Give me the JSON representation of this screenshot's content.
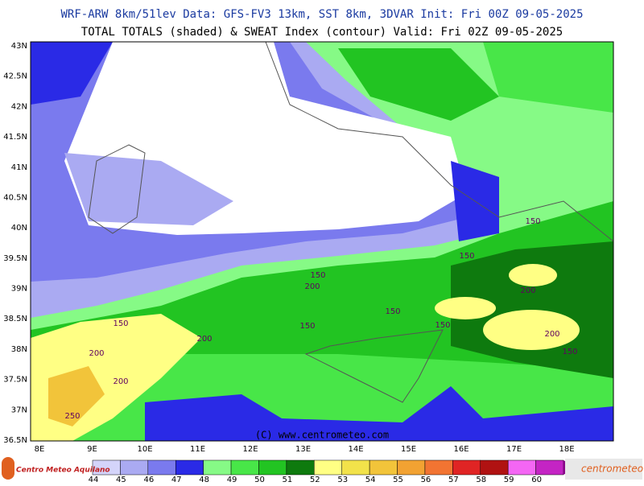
{
  "header": {
    "line1": "WRF-ARW 8km/51lev  Data: GFS-FV3 13km, SST 8km, 3DVAR  Init: Fri 00Z 09-05-2025",
    "line2": "TOTAL TOTALS (shaded) & SWEAT Index (contour)  Valid: Fri 02Z 09-05-2025"
  },
  "map": {
    "lat_labels": [
      "43N",
      "42.5N",
      "42N",
      "41.5N",
      "41N",
      "40.5N",
      "40N",
      "39.5N",
      "39N",
      "38.5N",
      "38N",
      "37.5N",
      "37N",
      "36.5N"
    ],
    "lon_labels": [
      "8E",
      "9E",
      "10E",
      "11E",
      "12E",
      "13E",
      "14E",
      "15E",
      "16E",
      "17E",
      "18E"
    ],
    "contour_labels": [
      150,
      150,
      150,
      150,
      150,
      150,
      150,
      150,
      200,
      200,
      200,
      200,
      200,
      200,
      250
    ],
    "copyright": "(C) www.centrometeo.com"
  },
  "colorbar": {
    "labels": [
      44,
      45,
      46,
      47,
      48,
      49,
      50,
      51,
      52,
      53,
      54,
      55,
      56,
      57,
      58,
      59,
      60
    ],
    "colors": [
      "#d4d4fa",
      "#aaaaf2",
      "#7a7aee",
      "#2a2ae6",
      "#86fa86",
      "#48e648",
      "#22c422",
      "#0e7a0e",
      "#ffff84",
      "#f2e24a",
      "#f2c43a",
      "#f2a232",
      "#f27432",
      "#e02424",
      "#b01212",
      "#f466f4",
      "#c424c4"
    ]
  },
  "footer": {
    "logo_left": "Centro Meteo Aquilano",
    "logo_right": "centrometeo"
  }
}
